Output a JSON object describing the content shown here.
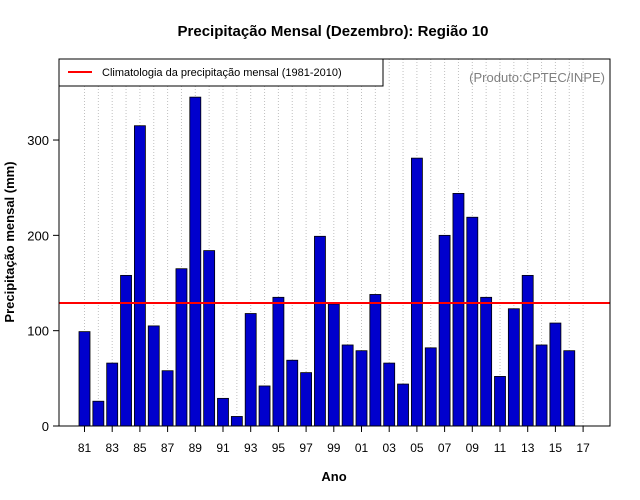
{
  "chart_data": {
    "type": "bar",
    "title": "Precipitação Mensal (Dezembro): Região 10",
    "xlabel": "Ano",
    "ylabel": "Precipitação mensal (mm)",
    "credit": "(Produto:CPTEC/INPE)",
    "legend": {
      "label": "Climatologia da precipitação mensal (1981-2010)",
      "position": "top-left"
    },
    "categories": [
      "81",
      "82",
      "83",
      "84",
      "85",
      "86",
      "87",
      "88",
      "89",
      "90",
      "91",
      "92",
      "93",
      "94",
      "95",
      "96",
      "97",
      "98",
      "99",
      "00",
      "01",
      "02",
      "03",
      "04",
      "05",
      "06",
      "07",
      "08",
      "09",
      "10",
      "11",
      "12",
      "13",
      "14",
      "15",
      "16",
      "17"
    ],
    "x_tick_labels": [
      "81",
      "83",
      "85",
      "87",
      "89",
      "91",
      "93",
      "95",
      "97",
      "99",
      "01",
      "03",
      "05",
      "07",
      "09",
      "11",
      "13",
      "15",
      "17"
    ],
    "values": [
      99,
      26,
      66,
      158,
      315,
      105,
      58,
      165,
      345,
      184,
      29,
      10,
      118,
      42,
      135,
      69,
      56,
      199,
      128,
      85,
      79,
      138,
      66,
      44,
      281,
      82,
      200,
      244,
      219,
      135,
      52,
      123,
      158,
      85,
      108,
      79,
      null
    ],
    "climatology": 129,
    "ylim": [
      0,
      385
    ],
    "y_ticks": [
      0,
      100,
      200,
      300
    ],
    "grid": "vertical dotted",
    "colors": {
      "bar": "#0000cd",
      "bar_edge": "#000000",
      "climatology_line": "#ff0000",
      "grid": "#c0c0c0"
    }
  }
}
